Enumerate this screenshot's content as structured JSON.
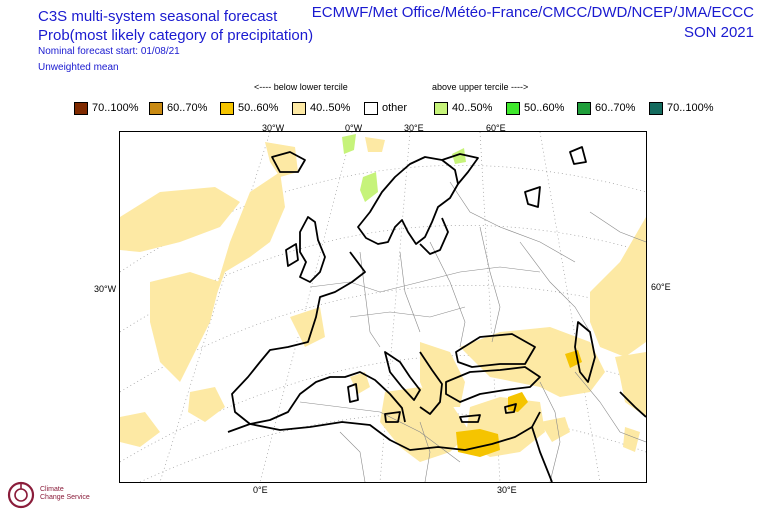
{
  "title_line1": "C3S multi-system seasonal forecast",
  "title_line2": "Prob(most likely category of precipitation)",
  "start_note": "Nominal forecast start: 01/08/21",
  "mean_note": "Unweighted mean",
  "providers": "ECMWF/Met Office/Météo-France/CMCC/DWD/NCEP/JMA/ECCC",
  "season": "SON 2021",
  "legend_note_below": "<---- below lower tercile",
  "legend_note_above": "above upper tercile ---->",
  "legend": [
    {
      "label": "70..100%",
      "color": "#7f2a00"
    },
    {
      "label": "60..70%",
      "color": "#c98a12"
    },
    {
      "label": "50..60%",
      "color": "#f5c400"
    },
    {
      "label": "40..50%",
      "color": "#fde9a4"
    },
    {
      "label": "other",
      "color": "#ffffff"
    },
    {
      "label": "40..50%",
      "color": "#c6f37a"
    },
    {
      "label": "50..60%",
      "color": "#3fe82c"
    },
    {
      "label": "60..70%",
      "color": "#1f9e3a"
    },
    {
      "label": "70..100%",
      "color": "#146b5e"
    }
  ],
  "map_labels": {
    "top_30w": "30°W",
    "top_0": "0°W",
    "top_30e": "30°E",
    "top_60e": "60°E",
    "left_30w": "30°W",
    "right_60e": "60°E",
    "bottom_0": "0°E",
    "bottom_30e": "30°E"
  },
  "logo": {
    "line1": "Climate",
    "line2": "Change Service"
  },
  "colors": {
    "text": "#1a1ad0",
    "coast": "#000000",
    "border": "#888888"
  }
}
